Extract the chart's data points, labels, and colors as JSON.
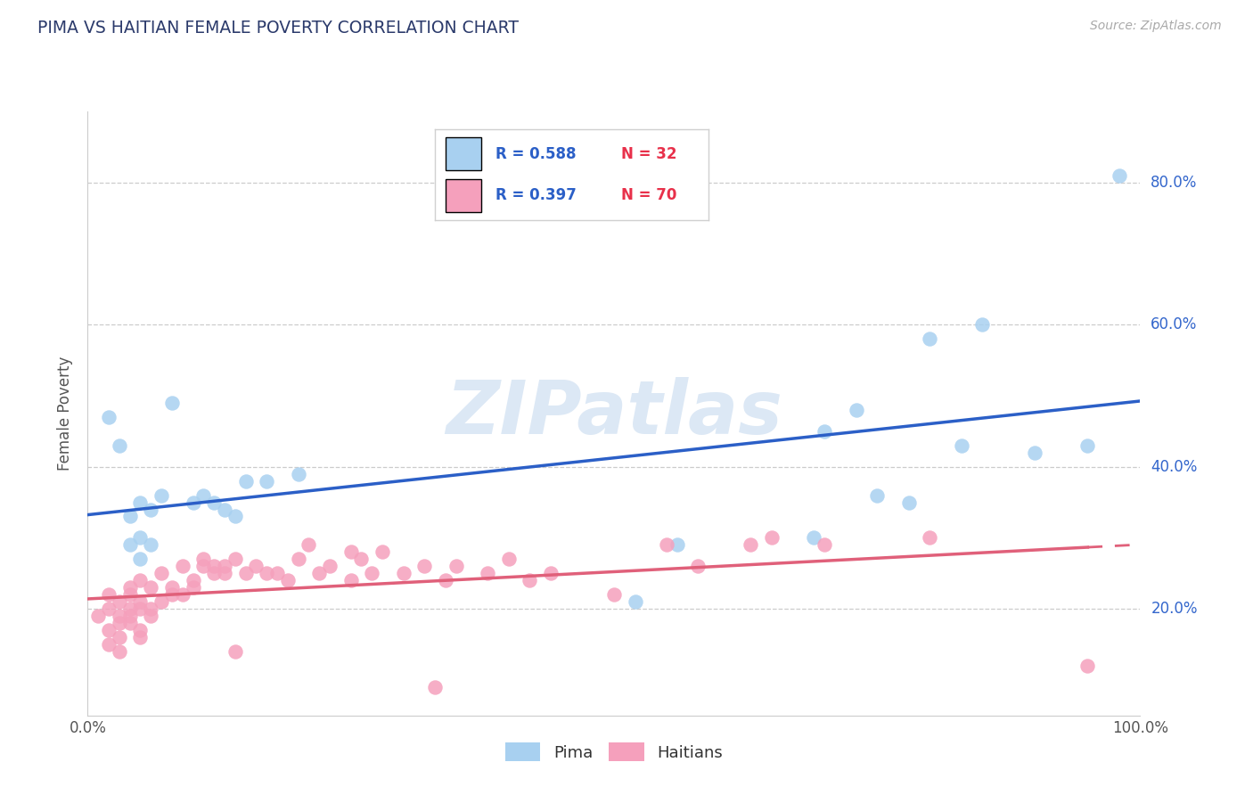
{
  "title": "PIMA VS HAITIAN FEMALE POVERTY CORRELATION CHART",
  "source": "Source: ZipAtlas.com",
  "ylabel": "Female Poverty",
  "xlim": [
    0.0,
    1.0
  ],
  "ylim": [
    0.05,
    0.9
  ],
  "xticks": [
    0.0,
    0.2,
    0.4,
    0.6,
    0.8,
    1.0
  ],
  "xtick_labels": [
    "0.0%",
    "",
    "",
    "",
    "",
    "100.0%"
  ],
  "yticks": [
    0.2,
    0.4,
    0.6,
    0.8
  ],
  "ytick_labels": [
    "20.0%",
    "40.0%",
    "60.0%",
    "80.0%"
  ],
  "pima_color": "#a8d0f0",
  "haitian_color": "#f5a0bc",
  "pima_line_color": "#2B5FC7",
  "haitian_line_color": "#E0607A",
  "legend_color": "#2B5FC7",
  "legend_n_color": "#E8304A",
  "watermark_text": "ZIPatlas",
  "watermark_color": "#dce8f5",
  "background_color": "#ffffff",
  "grid_color": "#cccccc",
  "pima_data": [
    [
      0.02,
      0.47
    ],
    [
      0.03,
      0.43
    ],
    [
      0.04,
      0.29
    ],
    [
      0.04,
      0.33
    ],
    [
      0.05,
      0.35
    ],
    [
      0.05,
      0.3
    ],
    [
      0.05,
      0.27
    ],
    [
      0.06,
      0.34
    ],
    [
      0.06,
      0.29
    ],
    [
      0.07,
      0.36
    ],
    [
      0.08,
      0.49
    ],
    [
      0.1,
      0.35
    ],
    [
      0.11,
      0.36
    ],
    [
      0.12,
      0.35
    ],
    [
      0.13,
      0.34
    ],
    [
      0.14,
      0.33
    ],
    [
      0.15,
      0.38
    ],
    [
      0.17,
      0.38
    ],
    [
      0.2,
      0.39
    ],
    [
      0.52,
      0.21
    ],
    [
      0.56,
      0.29
    ],
    [
      0.69,
      0.3
    ],
    [
      0.7,
      0.45
    ],
    [
      0.73,
      0.48
    ],
    [
      0.75,
      0.36
    ],
    [
      0.78,
      0.35
    ],
    [
      0.8,
      0.58
    ],
    [
      0.83,
      0.43
    ],
    [
      0.85,
      0.6
    ],
    [
      0.9,
      0.42
    ],
    [
      0.95,
      0.43
    ],
    [
      0.98,
      0.81
    ]
  ],
  "haitian_data": [
    [
      0.01,
      0.19
    ],
    [
      0.02,
      0.2
    ],
    [
      0.02,
      0.17
    ],
    [
      0.02,
      0.15
    ],
    [
      0.02,
      0.22
    ],
    [
      0.03,
      0.21
    ],
    [
      0.03,
      0.18
    ],
    [
      0.03,
      0.19
    ],
    [
      0.03,
      0.16
    ],
    [
      0.03,
      0.14
    ],
    [
      0.04,
      0.2
    ],
    [
      0.04,
      0.22
    ],
    [
      0.04,
      0.19
    ],
    [
      0.04,
      0.23
    ],
    [
      0.04,
      0.18
    ],
    [
      0.05,
      0.21
    ],
    [
      0.05,
      0.17
    ],
    [
      0.05,
      0.2
    ],
    [
      0.05,
      0.16
    ],
    [
      0.05,
      0.24
    ],
    [
      0.06,
      0.23
    ],
    [
      0.06,
      0.2
    ],
    [
      0.06,
      0.19
    ],
    [
      0.07,
      0.21
    ],
    [
      0.07,
      0.25
    ],
    [
      0.08,
      0.22
    ],
    [
      0.08,
      0.23
    ],
    [
      0.09,
      0.26
    ],
    [
      0.09,
      0.22
    ],
    [
      0.1,
      0.24
    ],
    [
      0.1,
      0.23
    ],
    [
      0.11,
      0.26
    ],
    [
      0.11,
      0.27
    ],
    [
      0.12,
      0.25
    ],
    [
      0.12,
      0.26
    ],
    [
      0.13,
      0.26
    ],
    [
      0.13,
      0.25
    ],
    [
      0.14,
      0.27
    ],
    [
      0.14,
      0.14
    ],
    [
      0.15,
      0.25
    ],
    [
      0.16,
      0.26
    ],
    [
      0.17,
      0.25
    ],
    [
      0.18,
      0.25
    ],
    [
      0.19,
      0.24
    ],
    [
      0.2,
      0.27
    ],
    [
      0.21,
      0.29
    ],
    [
      0.22,
      0.25
    ],
    [
      0.23,
      0.26
    ],
    [
      0.25,
      0.28
    ],
    [
      0.25,
      0.24
    ],
    [
      0.26,
      0.27
    ],
    [
      0.27,
      0.25
    ],
    [
      0.28,
      0.28
    ],
    [
      0.3,
      0.25
    ],
    [
      0.32,
      0.26
    ],
    [
      0.33,
      0.09
    ],
    [
      0.34,
      0.24
    ],
    [
      0.35,
      0.26
    ],
    [
      0.38,
      0.25
    ],
    [
      0.4,
      0.27
    ],
    [
      0.42,
      0.24
    ],
    [
      0.44,
      0.25
    ],
    [
      0.5,
      0.22
    ],
    [
      0.55,
      0.29
    ],
    [
      0.58,
      0.26
    ],
    [
      0.63,
      0.29
    ],
    [
      0.65,
      0.3
    ],
    [
      0.7,
      0.29
    ],
    [
      0.8,
      0.3
    ],
    [
      0.95,
      0.12
    ]
  ]
}
